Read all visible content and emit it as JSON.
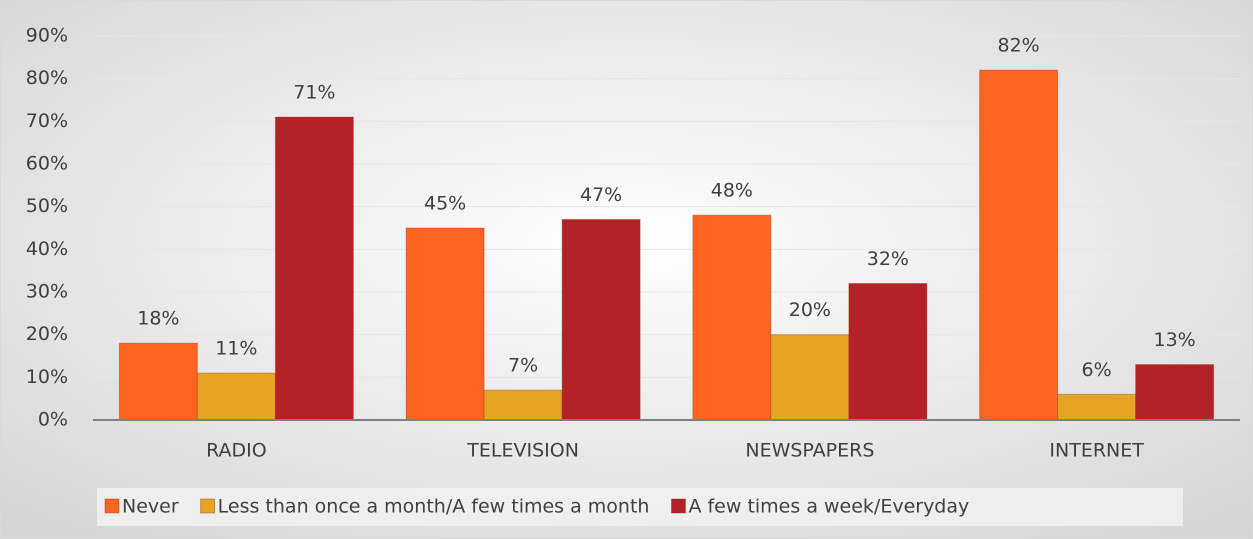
{
  "chart_data": {
    "type": "bar",
    "categories": [
      "RADIO",
      "TELEVISION",
      "NEWSPAPERS",
      "INTERNET"
    ],
    "series": [
      {
        "name": "Never",
        "color": "#fb6520",
        "values": [
          18,
          45,
          48,
          82
        ],
        "value_labels": [
          "18%",
          "45%",
          "48%",
          "82%"
        ]
      },
      {
        "name": "Less than once a month/A few times a month",
        "color": "#e6a424",
        "values": [
          11,
          7,
          20,
          6
        ],
        "value_labels": [
          "11%",
          "7%",
          "20%",
          "6%"
        ]
      },
      {
        "name": "A few times a week/Everyday",
        "color": "#b32226",
        "values": [
          71,
          47,
          32,
          13
        ],
        "value_labels": [
          "71%",
          "47%",
          "32%",
          "13%"
        ]
      }
    ],
    "ylim": [
      0,
      90
    ],
    "yticks": [
      {
        "value": 0,
        "label": "0%"
      },
      {
        "value": 10,
        "label": "10%"
      },
      {
        "value": 20,
        "label": "20%"
      },
      {
        "value": 30,
        "label": "30%"
      },
      {
        "value": 40,
        "label": "40%"
      },
      {
        "value": 50,
        "label": "50%"
      },
      {
        "value": 60,
        "label": "60%"
      },
      {
        "value": 70,
        "label": "70%"
      },
      {
        "value": 80,
        "label": "80%"
      },
      {
        "value": 90,
        "label": "90%"
      }
    ],
    "grid": true,
    "legend": "bottom"
  }
}
